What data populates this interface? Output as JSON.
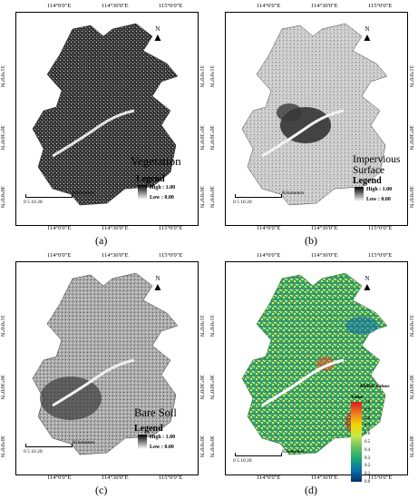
{
  "ticks": {
    "lon": [
      "114°0'0\"E",
      "114°30'0\"E",
      "115°0'0\"E"
    ],
    "lat": [
      "31°0'0\"N",
      "30°30'0\"N",
      "30°0'0\"N"
    ]
  },
  "scalebar": {
    "numbers": "0  5 10    20",
    "unit": "Kilometers"
  },
  "north": "N",
  "panels": [
    {
      "caption": "(a)",
      "legend_title": "Vegetation",
      "legend_sub": "Legend",
      "high": "High : 1.00",
      "low": "Low : 0.00",
      "texture": "#2a2a2a"
    },
    {
      "caption": "(b)",
      "legend_title": "Impervious\nSurface",
      "legend_sub": "Legend",
      "high": "High : 1.00",
      "low": "Low : 0.00",
      "texture": "#bdbdbd"
    },
    {
      "caption": "(c)",
      "legend_title": "Bare Soil",
      "legend_sub": "Legend",
      "high": "High : 1.00",
      "low": "Low : 0.00",
      "texture": "#9a9a9a"
    },
    {
      "caption": "(d)",
      "legend_title": "RMSE Values",
      "legend_sub": "Value",
      "rmse_values": [
        "1.0",
        "0.9",
        "0.8",
        "0.7",
        "0.6",
        "0.5",
        "0.4",
        "0.3",
        "0.2",
        "0.1",
        "0.0"
      ]
    }
  ]
}
